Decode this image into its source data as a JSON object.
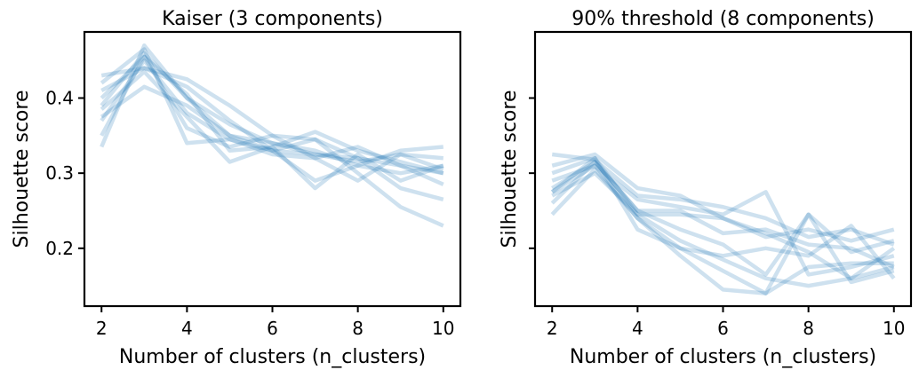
{
  "chart_data": [
    {
      "type": "line",
      "title": "Kaiser (3 components)",
      "xlabel": "Number of clusters (n_clusters)",
      "ylabel": "Silhouette score",
      "x": [
        2,
        3,
        4,
        5,
        6,
        7,
        8,
        9,
        10
      ],
      "xticks": [
        2,
        4,
        6,
        8,
        10
      ],
      "xtick_labels": [
        "2",
        "4",
        "6",
        "8",
        "10"
      ],
      "yticks": [
        0.2,
        0.3,
        0.4
      ],
      "ytick_labels": [
        "0.2",
        "0.3",
        "0.4"
      ],
      "xlim": [
        1.6,
        10.4
      ],
      "ylim": [
        0.123,
        0.488
      ],
      "grid": false,
      "line_color": "#1f77b4",
      "line_alpha": 0.22,
      "series": [
        {
          "values": [
            0.43,
            0.44,
            0.415,
            0.37,
            0.33,
            0.325,
            0.32,
            0.31,
            0.285
          ]
        },
        {
          "values": [
            0.41,
            0.44,
            0.425,
            0.39,
            0.35,
            0.32,
            0.335,
            0.31,
            0.3
          ]
        },
        {
          "values": [
            0.39,
            0.46,
            0.4,
            0.35,
            0.34,
            0.325,
            0.315,
            0.325,
            0.32
          ]
        },
        {
          "values": [
            0.375,
            0.415,
            0.39,
            0.35,
            0.33,
            0.29,
            0.31,
            0.33,
            0.335
          ]
        },
        {
          "values": [
            0.335,
            0.47,
            0.4,
            0.365,
            0.34,
            0.33,
            0.31,
            0.3,
            0.31
          ]
        },
        {
          "values": [
            0.35,
            0.455,
            0.36,
            0.335,
            0.35,
            0.345,
            0.3,
            0.255,
            0.23
          ]
        },
        {
          "values": [
            0.37,
            0.45,
            0.38,
            0.345,
            0.33,
            0.345,
            0.32,
            0.28,
            0.265
          ]
        },
        {
          "values": [
            0.4,
            0.455,
            0.405,
            0.33,
            0.335,
            0.28,
            0.325,
            0.29,
            0.31
          ]
        },
        {
          "values": [
            0.42,
            0.465,
            0.34,
            0.345,
            0.325,
            0.32,
            0.29,
            0.325,
            0.305
          ]
        },
        {
          "values": [
            0.385,
            0.435,
            0.375,
            0.315,
            0.335,
            0.355,
            0.33,
            0.315,
            0.3
          ]
        }
      ]
    },
    {
      "type": "line",
      "title": "90% threshold (8 components)",
      "xlabel": "Number of clusters (n_clusters)",
      "ylabel": "Silhouette score",
      "x": [
        2,
        3,
        4,
        5,
        6,
        7,
        8,
        9,
        10
      ],
      "xticks": [
        2,
        4,
        6,
        8,
        10
      ],
      "xtick_labels": [
        "2",
        "4",
        "6",
        "8",
        "10"
      ],
      "yticks": [
        0.2,
        0.3,
        0.4
      ],
      "ytick_labels": [
        "",
        "",
        ""
      ],
      "xlim": [
        1.6,
        10.4
      ],
      "ylim": [
        0.123,
        0.488
      ],
      "grid": false,
      "line_color": "#1f77b4",
      "line_alpha": 0.22,
      "series": [
        {
          "values": [
            0.325,
            0.318,
            0.27,
            0.265,
            0.255,
            0.24,
            0.215,
            0.225,
            0.205
          ]
        },
        {
          "values": [
            0.31,
            0.325,
            0.28,
            0.27,
            0.24,
            0.22,
            0.195,
            0.16,
            0.2
          ]
        },
        {
          "values": [
            0.3,
            0.32,
            0.245,
            0.245,
            0.24,
            0.215,
            0.225,
            0.21,
            0.225
          ]
        },
        {
          "values": [
            0.28,
            0.315,
            0.25,
            0.25,
            0.22,
            0.225,
            0.205,
            0.2,
            0.175
          ]
        },
        {
          "values": [
            0.275,
            0.31,
            0.265,
            0.255,
            0.245,
            0.275,
            0.165,
            0.175,
            0.19
          ]
        },
        {
          "values": [
            0.26,
            0.315,
            0.25,
            0.225,
            0.205,
            0.165,
            0.245,
            0.195,
            0.21
          ]
        },
        {
          "values": [
            0.245,
            0.305,
            0.24,
            0.2,
            0.17,
            0.14,
            0.245,
            0.155,
            0.17
          ]
        },
        {
          "values": [
            0.27,
            0.3,
            0.245,
            0.21,
            0.185,
            0.16,
            0.15,
            0.16,
            0.175
          ]
        },
        {
          "values": [
            0.29,
            0.31,
            0.24,
            0.19,
            0.145,
            0.14,
            0.175,
            0.18,
            0.18
          ]
        },
        {
          "values": [
            0.275,
            0.32,
            0.225,
            0.2,
            0.19,
            0.2,
            0.19,
            0.23,
            0.16
          ]
        }
      ]
    }
  ]
}
